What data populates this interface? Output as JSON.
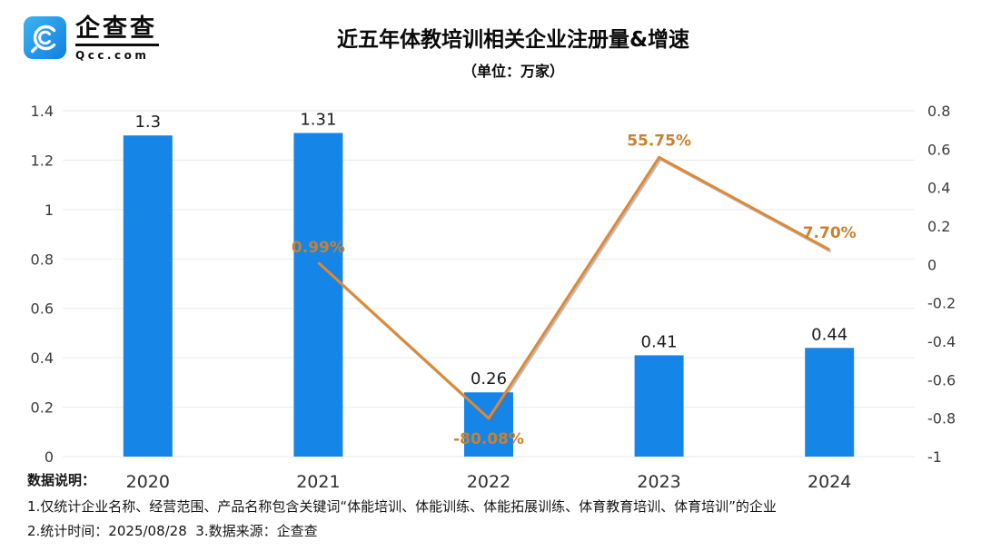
{
  "header": {
    "logo": {
      "name": "企查查",
      "domain": "Qcc.com"
    },
    "title": "近五年体教培训相关企业注册量&增速",
    "subtitle": "（单位：万家）"
  },
  "chart_data": {
    "type": "bar",
    "title": "近五年体教培训相关企业注册量&增速",
    "subtitle": "（单位：万家）",
    "categories": [
      "2020",
      "2021",
      "2022",
      "2023",
      "2024"
    ],
    "series": [
      {
        "name": "注册量（万家）",
        "type": "bar",
        "axis": "left",
        "values": [
          1.3,
          1.31,
          0.26,
          0.41,
          0.44
        ],
        "labels": [
          "1.3",
          "1.31",
          "0.26",
          "0.41",
          "0.44"
        ],
        "color": "#1585E8"
      },
      {
        "name": "增速",
        "type": "line",
        "axis": "right",
        "categories": [
          "2021",
          "2022",
          "2023",
          "2024"
        ],
        "values": [
          0.0099,
          -0.8008,
          0.5575,
          0.077
        ],
        "labels": [
          "0.99%",
          "-80.08%",
          "55.75%",
          "7.70%"
        ],
        "color": "#DD8936",
        "label_color": "#C8812F"
      }
    ],
    "left_axis": {
      "min": 0,
      "max": 1.4,
      "step": 0.2,
      "ticks": [
        "0",
        "0.2",
        "0.4",
        "0.6",
        "0.8",
        "1",
        "1.2",
        "1.4"
      ]
    },
    "right_axis": {
      "min": -1,
      "max": 0.8,
      "step": 0.2,
      "ticks": [
        "0.8",
        "0.6",
        "0.4",
        "0.2",
        "0",
        "-0.2",
        "-0.4",
        "-0.6",
        "-0.8",
        "-1"
      ]
    },
    "grid": true,
    "legend_position": "none"
  },
  "footer": {
    "label": "数据说明：",
    "note1": "1.仅统计企业名称、经营范围、产品名称包含关键词“体能培训、体能训练、体能拓展训练、体育教育培训、体育培训”的企业",
    "note2": "2.统计时间：2025/08/28  3.数据来源：企查查"
  },
  "colors": {
    "bar": "#1585E8",
    "line": "#DD8936",
    "line_label": "#C8812F",
    "grid": "#e9e9e9",
    "tick_text": "#3b3b3b",
    "bar_label_text": "#1b1b1b",
    "logo_blue_light": "#3DB3F2",
    "logo_blue_dark": "#1180DF"
  }
}
